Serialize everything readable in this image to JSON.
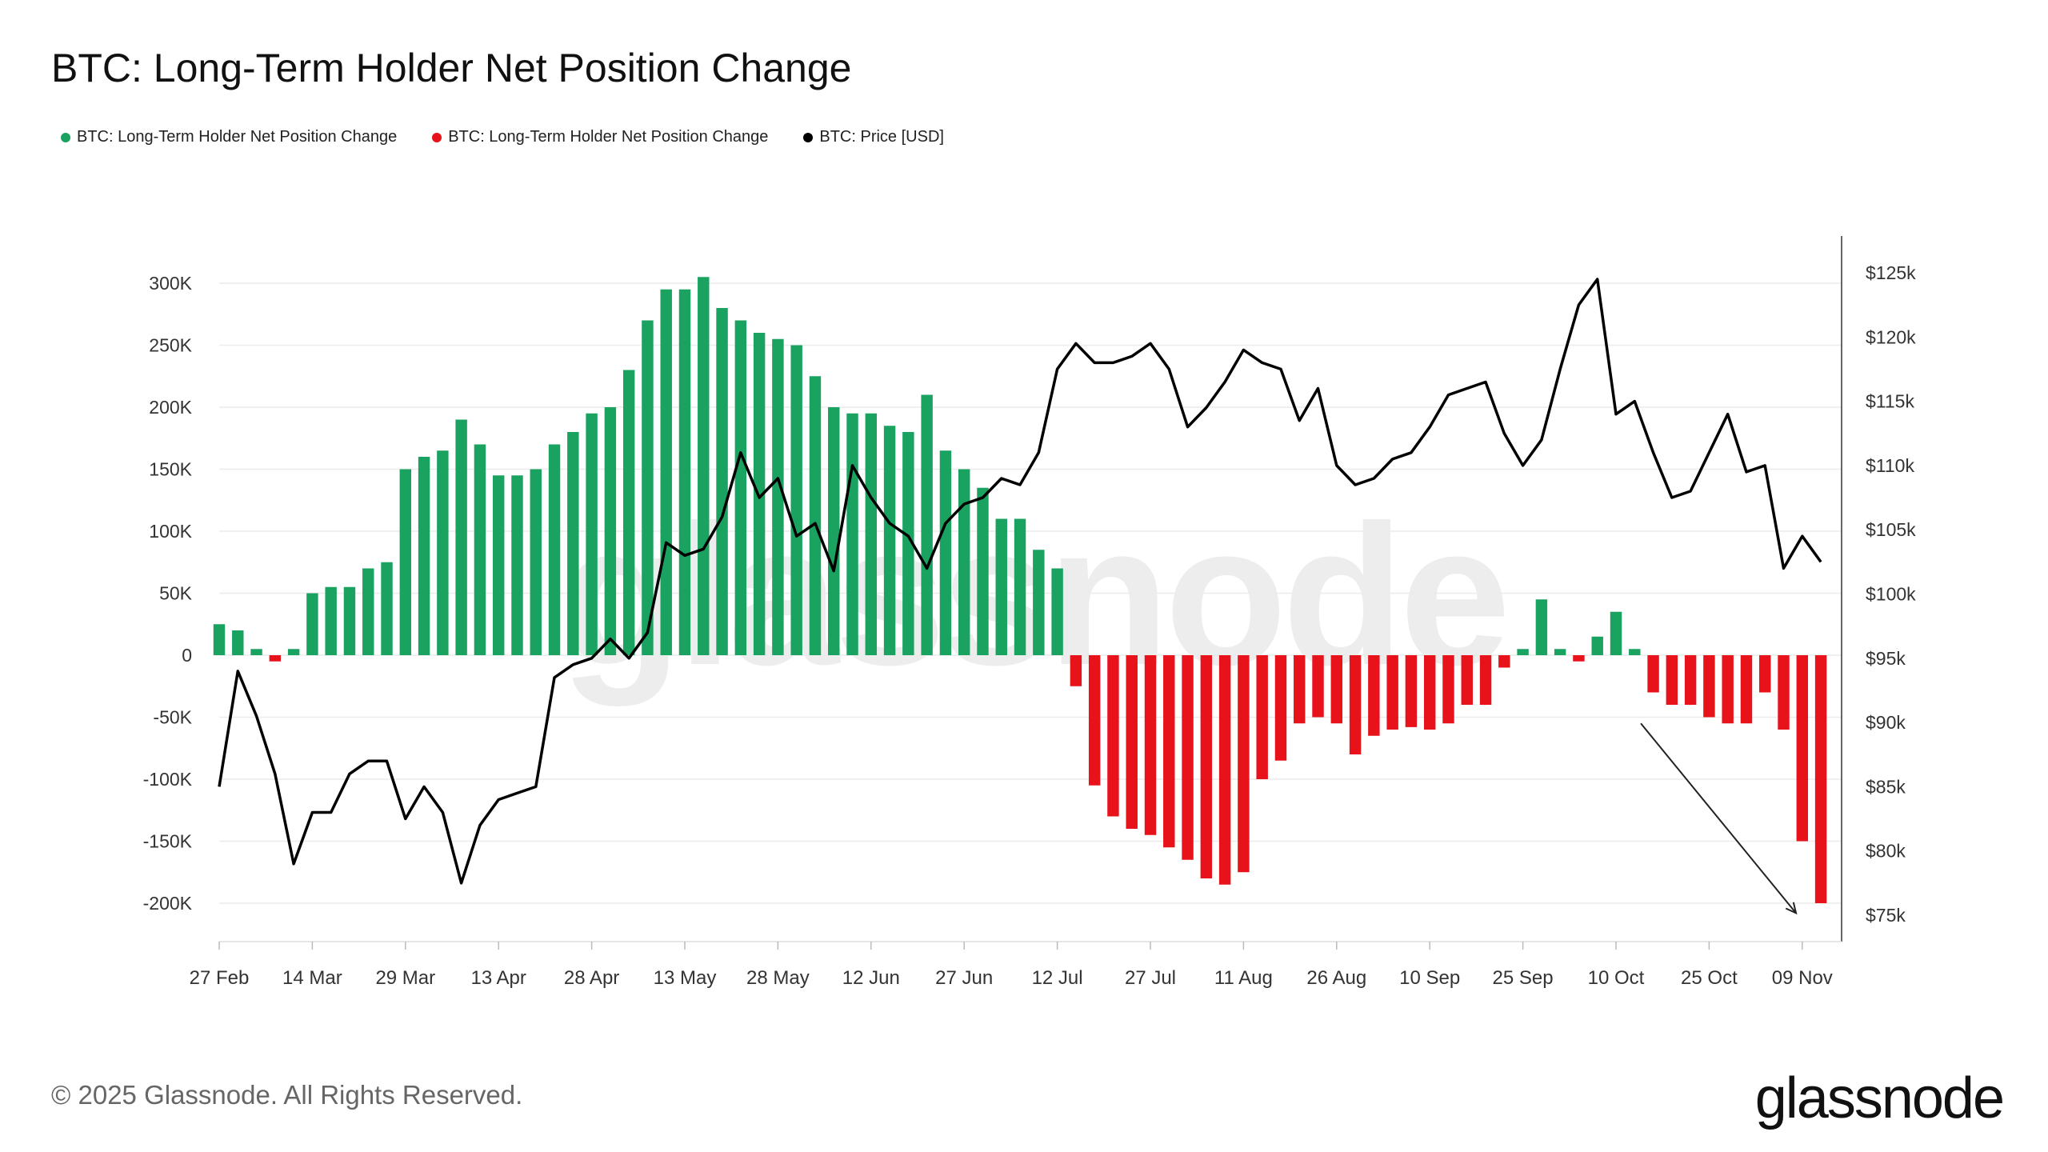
{
  "title": "BTC: Long-Term Holder Net Position Change",
  "legend": [
    {
      "label": "BTC: Long-Term Holder Net Position Change",
      "color": "#1aa260"
    },
    {
      "label": "BTC: Long-Term Holder Net Position Change",
      "color": "#e8121b"
    },
    {
      "label": "BTC: Price [USD]",
      "color": "#000000"
    }
  ],
  "footer": "© 2025 Glassnode. All Rights Reserved.",
  "logo": "glassnode",
  "watermark": "glassnode",
  "chart_data": {
    "type": "bar",
    "title": "BTC: Long-Term Holder Net Position Change",
    "colors": {
      "positive": "#1aa260",
      "negative": "#e8121b",
      "price": "#000000"
    },
    "grid": true,
    "legend_position": "top-left",
    "y_left": {
      "ticks": [
        300000,
        250000,
        200000,
        150000,
        100000,
        50000,
        0,
        -50000,
        -100000,
        -150000,
        -200000
      ],
      "tick_labels": [
        "300K",
        "250K",
        "200K",
        "150K",
        "100K",
        "50K",
        "0",
        "-50K",
        "-100K",
        "-150K",
        "-200K"
      ],
      "range": [
        -230000,
        330000
      ]
    },
    "y_right": {
      "ticks": [
        125000,
        120000,
        115000,
        110000,
        105000,
        100000,
        95000,
        90000,
        85000,
        80000,
        75000
      ],
      "tick_labels": [
        "$125k",
        "$120k",
        "$115k",
        "$110k",
        "$105k",
        "$100k",
        "$95k",
        "$90k",
        "$85k",
        "$80k",
        "$75k"
      ],
      "range": [
        73000,
        127000
      ]
    },
    "x_ticks": [
      {
        "date": "2025-02-27",
        "label": "27 Feb"
      },
      {
        "date": "2025-03-14",
        "label": "14 Mar"
      },
      {
        "date": "2025-03-29",
        "label": "29 Mar"
      },
      {
        "date": "2025-04-13",
        "label": "13 Apr"
      },
      {
        "date": "2025-04-28",
        "label": "28 Apr"
      },
      {
        "date": "2025-05-13",
        "label": "13 May"
      },
      {
        "date": "2025-05-28",
        "label": "28 May"
      },
      {
        "date": "2025-06-12",
        "label": "12 Jun"
      },
      {
        "date": "2025-06-27",
        "label": "27 Jun"
      },
      {
        "date": "2025-07-12",
        "label": "12 Jul"
      },
      {
        "date": "2025-07-27",
        "label": "27 Jul"
      },
      {
        "date": "2025-08-11",
        "label": "11 Aug"
      },
      {
        "date": "2025-08-26",
        "label": "26 Aug"
      },
      {
        "date": "2025-09-10",
        "label": "10 Sep"
      },
      {
        "date": "2025-09-25",
        "label": "25 Sep"
      },
      {
        "date": "2025-10-10",
        "label": "10 Oct"
      },
      {
        "date": "2025-10-25",
        "label": "25 Oct"
      },
      {
        "date": "2025-11-09",
        "label": "09 Nov"
      }
    ],
    "x_range": [
      "2025-02-26",
      "2025-11-13"
    ],
    "series": [
      {
        "name": "BTC: Long-Term Holder Net Position Change",
        "axis": "left",
        "points": [
          [
            "2025-02-27",
            25000
          ],
          [
            "2025-03-02",
            20000
          ],
          [
            "2025-03-05",
            5000
          ],
          [
            "2025-03-08",
            -5000
          ],
          [
            "2025-03-11",
            5000
          ],
          [
            "2025-03-14",
            50000
          ],
          [
            "2025-03-17",
            55000
          ],
          [
            "2025-03-20",
            55000
          ],
          [
            "2025-03-23",
            70000
          ],
          [
            "2025-03-26",
            75000
          ],
          [
            "2025-03-29",
            150000
          ],
          [
            "2025-04-01",
            160000
          ],
          [
            "2025-04-04",
            165000
          ],
          [
            "2025-04-07",
            190000
          ],
          [
            "2025-04-10",
            170000
          ],
          [
            "2025-04-13",
            145000
          ],
          [
            "2025-04-16",
            145000
          ],
          [
            "2025-04-19",
            150000
          ],
          [
            "2025-04-22",
            170000
          ],
          [
            "2025-04-25",
            180000
          ],
          [
            "2025-04-28",
            195000
          ],
          [
            "2025-05-01",
            200000
          ],
          [
            "2025-05-04",
            230000
          ],
          [
            "2025-05-07",
            270000
          ],
          [
            "2025-05-10",
            295000
          ],
          [
            "2025-05-13",
            295000
          ],
          [
            "2025-05-16",
            305000
          ],
          [
            "2025-05-19",
            280000
          ],
          [
            "2025-05-22",
            270000
          ],
          [
            "2025-05-25",
            260000
          ],
          [
            "2025-05-28",
            255000
          ],
          [
            "2025-05-31",
            250000
          ],
          [
            "2025-06-03",
            225000
          ],
          [
            "2025-06-06",
            200000
          ],
          [
            "2025-06-09",
            195000
          ],
          [
            "2025-06-12",
            195000
          ],
          [
            "2025-06-15",
            185000
          ],
          [
            "2025-06-18",
            180000
          ],
          [
            "2025-06-21",
            210000
          ],
          [
            "2025-06-24",
            165000
          ],
          [
            "2025-06-27",
            150000
          ],
          [
            "2025-06-30",
            135000
          ],
          [
            "2025-07-03",
            110000
          ],
          [
            "2025-07-06",
            110000
          ],
          [
            "2025-07-09",
            85000
          ],
          [
            "2025-07-12",
            70000
          ],
          [
            "2025-07-15",
            -25000
          ],
          [
            "2025-07-18",
            -105000
          ],
          [
            "2025-07-21",
            -130000
          ],
          [
            "2025-07-24",
            -140000
          ],
          [
            "2025-07-27",
            -145000
          ],
          [
            "2025-07-30",
            -155000
          ],
          [
            "2025-08-02",
            -165000
          ],
          [
            "2025-08-05",
            -180000
          ],
          [
            "2025-08-08",
            -185000
          ],
          [
            "2025-08-11",
            -175000
          ],
          [
            "2025-08-14",
            -100000
          ],
          [
            "2025-08-17",
            -85000
          ],
          [
            "2025-08-20",
            -55000
          ],
          [
            "2025-08-23",
            -50000
          ],
          [
            "2025-08-26",
            -55000
          ],
          [
            "2025-08-29",
            -80000
          ],
          [
            "2025-09-01",
            -65000
          ],
          [
            "2025-09-04",
            -60000
          ],
          [
            "2025-09-07",
            -58000
          ],
          [
            "2025-09-10",
            -60000
          ],
          [
            "2025-09-13",
            -55000
          ],
          [
            "2025-09-16",
            -40000
          ],
          [
            "2025-09-19",
            -40000
          ],
          [
            "2025-09-22",
            -10000
          ],
          [
            "2025-09-25",
            5000
          ],
          [
            "2025-09-28",
            45000
          ],
          [
            "2025-10-01",
            5000
          ],
          [
            "2025-10-04",
            -5000
          ],
          [
            "2025-10-07",
            15000
          ],
          [
            "2025-10-10",
            35000
          ],
          [
            "2025-10-13",
            5000
          ],
          [
            "2025-10-16",
            -30000
          ],
          [
            "2025-10-19",
            -40000
          ],
          [
            "2025-10-22",
            -40000
          ],
          [
            "2025-10-25",
            -50000
          ],
          [
            "2025-10-28",
            -55000
          ],
          [
            "2025-10-31",
            -55000
          ],
          [
            "2025-11-03",
            -30000
          ],
          [
            "2025-11-06",
            -60000
          ],
          [
            "2025-11-09",
            -150000
          ],
          [
            "2025-11-12",
            -200000
          ]
        ]
      },
      {
        "name": "BTC: Price [USD]",
        "axis": "right",
        "type": "line",
        "points": [
          [
            "2025-02-27",
            85000
          ],
          [
            "2025-03-02",
            94000
          ],
          [
            "2025-03-05",
            90500
          ],
          [
            "2025-03-08",
            86000
          ],
          [
            "2025-03-11",
            79000
          ],
          [
            "2025-03-14",
            83000
          ],
          [
            "2025-03-17",
            83000
          ],
          [
            "2025-03-20",
            86000
          ],
          [
            "2025-03-23",
            87000
          ],
          [
            "2025-03-26",
            87000
          ],
          [
            "2025-03-29",
            82500
          ],
          [
            "2025-04-01",
            85000
          ],
          [
            "2025-04-04",
            83000
          ],
          [
            "2025-04-07",
            77500
          ],
          [
            "2025-04-10",
            82000
          ],
          [
            "2025-04-13",
            84000
          ],
          [
            "2025-04-16",
            84500
          ],
          [
            "2025-04-19",
            85000
          ],
          [
            "2025-04-22",
            93500
          ],
          [
            "2025-04-25",
            94500
          ],
          [
            "2025-04-28",
            95000
          ],
          [
            "2025-05-01",
            96500
          ],
          [
            "2025-05-04",
            95000
          ],
          [
            "2025-05-07",
            97000
          ],
          [
            "2025-05-10",
            104000
          ],
          [
            "2025-05-13",
            103000
          ],
          [
            "2025-05-16",
            103500
          ],
          [
            "2025-05-19",
            106000
          ],
          [
            "2025-05-22",
            111000
          ],
          [
            "2025-05-25",
            107500
          ],
          [
            "2025-05-28",
            109000
          ],
          [
            "2025-05-31",
            104500
          ],
          [
            "2025-06-03",
            105500
          ],
          [
            "2025-06-06",
            101800
          ],
          [
            "2025-06-09",
            110000
          ],
          [
            "2025-06-12",
            107500
          ],
          [
            "2025-06-15",
            105500
          ],
          [
            "2025-06-18",
            104500
          ],
          [
            "2025-06-21",
            102000
          ],
          [
            "2025-06-24",
            105500
          ],
          [
            "2025-06-27",
            107000
          ],
          [
            "2025-06-30",
            107500
          ],
          [
            "2025-07-03",
            109000
          ],
          [
            "2025-07-06",
            108500
          ],
          [
            "2025-07-09",
            111000
          ],
          [
            "2025-07-12",
            117500
          ],
          [
            "2025-07-15",
            119500
          ],
          [
            "2025-07-18",
            118000
          ],
          [
            "2025-07-21",
            118000
          ],
          [
            "2025-07-24",
            118500
          ],
          [
            "2025-07-27",
            119500
          ],
          [
            "2025-07-30",
            117500
          ],
          [
            "2025-08-02",
            113000
          ],
          [
            "2025-08-05",
            114500
          ],
          [
            "2025-08-08",
            116500
          ],
          [
            "2025-08-11",
            119000
          ],
          [
            "2025-08-14",
            118000
          ],
          [
            "2025-08-17",
            117500
          ],
          [
            "2025-08-20",
            113500
          ],
          [
            "2025-08-23",
            116000
          ],
          [
            "2025-08-26",
            110000
          ],
          [
            "2025-08-29",
            108500
          ],
          [
            "2025-09-01",
            109000
          ],
          [
            "2025-09-04",
            110500
          ],
          [
            "2025-09-07",
            111000
          ],
          [
            "2025-09-10",
            113000
          ],
          [
            "2025-09-13",
            115500
          ],
          [
            "2025-09-16",
            116000
          ],
          [
            "2025-09-19",
            116500
          ],
          [
            "2025-09-22",
            112500
          ],
          [
            "2025-09-25",
            110000
          ],
          [
            "2025-09-28",
            112000
          ],
          [
            "2025-10-01",
            117500
          ],
          [
            "2025-10-04",
            122500
          ],
          [
            "2025-10-07",
            124500
          ],
          [
            "2025-10-10",
            114000
          ],
          [
            "2025-10-13",
            115000
          ],
          [
            "2025-10-16",
            111000
          ],
          [
            "2025-10-19",
            107500
          ],
          [
            "2025-10-22",
            108000
          ],
          [
            "2025-10-25",
            111000
          ],
          [
            "2025-10-28",
            114000
          ],
          [
            "2025-10-31",
            109500
          ],
          [
            "2025-11-03",
            110000
          ],
          [
            "2025-11-06",
            102000
          ],
          [
            "2025-11-09",
            104500
          ],
          [
            "2025-11-12",
            102500
          ]
        ]
      }
    ],
    "annotations": [
      {
        "type": "arrow",
        "from": [
          "2025-10-14",
          -55000
        ],
        "to": [
          "2025-11-08",
          -208000
        ]
      }
    ]
  }
}
